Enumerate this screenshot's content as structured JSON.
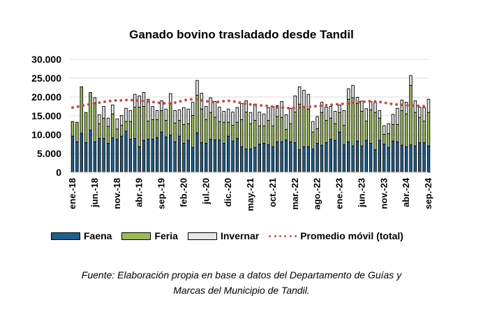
{
  "chart_data": {
    "type": "bar",
    "stacked": true,
    "title": "Ganado bovino trasladado desde Tandil",
    "xlabel": "",
    "ylabel": "",
    "ylim": [
      0,
      30000
    ],
    "yticks": [
      "0",
      "5.000",
      "10.000",
      "15.000",
      "20.000",
      "25.000",
      "30.000"
    ],
    "ytick_values": [
      0,
      5000,
      10000,
      15000,
      20000,
      25000,
      30000
    ],
    "grid": true,
    "legend_position": "bottom",
    "xtick_labels": [
      "ene.-18",
      "jun.-18",
      "nov.-18",
      "abr.-19",
      "sep.-19",
      "feb.-20",
      "jul.-20",
      "dic.-20",
      "may.-21",
      "oct.-21",
      "mar.-22",
      "ago.-22",
      "ene.-23",
      "jun.-23",
      "nov.-23",
      "abr.-24",
      "sep.-24"
    ],
    "xtick_every": 5,
    "n_months": 81,
    "colors": {
      "Faena": "#1f5f8b",
      "Feria": "#9bbb59",
      "Invernar": "#e6e6e6",
      "Promedio móvil (total)": "#c0504d"
    },
    "series": [
      {
        "name": "Faena",
        "values": [
          9600,
          8100,
          10400,
          7900,
          11200,
          8100,
          9000,
          9000,
          7700,
          9200,
          8800,
          9600,
          10900,
          8800,
          9000,
          6800,
          8500,
          8800,
          8800,
          9200,
          10700,
          9400,
          9900,
          8100,
          9600,
          7700,
          8500,
          6600,
          10500,
          7900,
          7700,
          8800,
          8600,
          8600,
          7700,
          9600,
          8300,
          9000,
          6800,
          6200,
          6200,
          6600,
          7500,
          7700,
          7300,
          6800,
          8100,
          8100,
          8600,
          8100,
          7900,
          6000,
          6800,
          6800,
          6200,
          7700,
          7200,
          7900,
          8800,
          8500,
          10700,
          7300,
          8100,
          7000,
          8300,
          7000,
          8500,
          7700,
          6000,
          8500,
          7500,
          6600,
          8300,
          8100,
          7200,
          6800,
          7300,
          7000,
          7900,
          7900,
          7000
        ]
      },
      {
        "name": "Feria",
        "values": [
          3900,
          5200,
          12300,
          8000,
          10000,
          10400,
          3900,
          5400,
          4500,
          6300,
          2700,
          2900,
          2600,
          4700,
          8300,
          10500,
          9000,
          4800,
          5200,
          4800,
          5700,
          4400,
          8400,
          5000,
          4200,
          5000,
          4400,
          8500,
          10000,
          8900,
          6300,
          7100,
          6000,
          4900,
          5600,
          3700,
          4200,
          4300,
          7200,
          9800,
          6700,
          7200,
          4800,
          4600,
          6500,
          5500,
          6700,
          6500,
          2800,
          4800,
          8100,
          12100,
          10700,
          10000,
          4500,
          3900,
          8700,
          5900,
          5600,
          4400,
          5200,
          5200,
          11300,
          12800,
          10000,
          9200,
          5100,
          8900,
          9900,
          5900,
          2600,
          3700,
          4400,
          4600,
          9200,
          8700,
          15800,
          8900,
          6700,
          5700,
          8900
        ]
      },
      {
        "name": "Invernar",
        "values": [
          0,
          0,
          0,
          0,
          0,
          1300,
          2400,
          3100,
          2200,
          2400,
          2700,
          2600,
          3500,
          2900,
          3400,
          3000,
          3700,
          5800,
          3500,
          2400,
          2600,
          3000,
          2600,
          3300,
          2800,
          4500,
          3900,
          3500,
          3900,
          4200,
          3500,
          3900,
          4200,
          3800,
          2900,
          3500,
          3500,
          3900,
          4300,
          3000,
          3000,
          4300,
          3700,
          3200,
          3400,
          5200,
          2900,
          4200,
          3900,
          4100,
          4300,
          4600,
          4300,
          3900,
          2800,
          3200,
          2700,
          3500,
          3100,
          3300,
          2000,
          3900,
          2800,
          3300,
          1600,
          2700,
          3300,
          2200,
          2600,
          2000,
          2300,
          2600,
          2700,
          4300,
          2800,
          3100,
          2600,
          3100,
          2700,
          3600,
          3500
        ]
      },
      {
        "name": "Promedio móvil (total)",
        "type": "line",
        "style": "dotted",
        "values": [
          17200,
          17400,
          17700,
          17900,
          18100,
          18300,
          18500,
          18700,
          18900,
          19000,
          19100,
          19100,
          19200,
          19200,
          19100,
          19000,
          18900,
          18800,
          18700,
          18500,
          18400,
          18300,
          18300,
          18500,
          18800,
          19100,
          19300,
          19400,
          19300,
          19100,
          18900,
          18700,
          18600,
          18700,
          18900,
          19000,
          18900,
          18600,
          18400,
          18200,
          18000,
          17900,
          17800,
          17700,
          17600,
          17400,
          17300,
          17200,
          17100,
          17000,
          17100,
          17200,
          17300,
          17400,
          17500,
          17600,
          17700,
          17800,
          17900,
          18000,
          18100,
          18200,
          18300,
          18400,
          18600,
          18700,
          18800,
          18900,
          18800,
          18700,
          18500,
          18300,
          18100,
          18000,
          17900,
          17800,
          17700,
          17700,
          17600,
          17600,
          17600
        ]
      }
    ]
  },
  "legend": {
    "faena": "Faena",
    "feria": "Feria",
    "invernar": "Invernar",
    "promedio": "Promedio móvil (total)"
  },
  "footer": {
    "line1": "Fuente: Elaboración propia en base a datos del Departamento de Guías y",
    "line2": "Marcas del Municipio de Tandil."
  }
}
